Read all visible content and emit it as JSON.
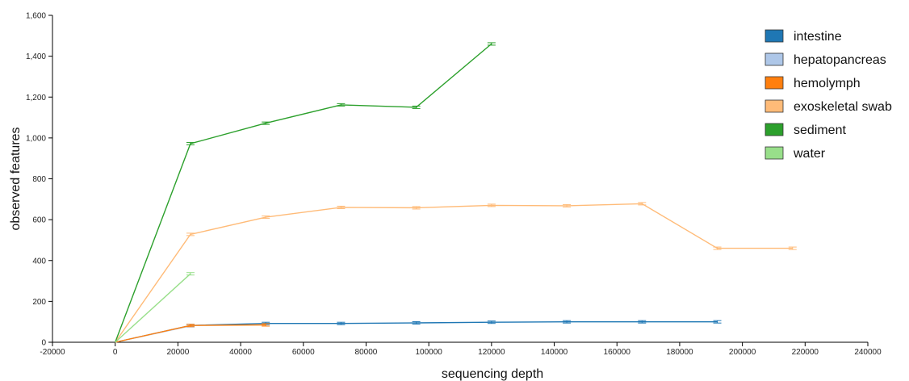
{
  "chart_data": {
    "type": "line",
    "xlabel": "sequencing depth",
    "ylabel": "observed features",
    "xlim": [
      -20000,
      240000
    ],
    "ylim": [
      0,
      1600
    ],
    "xticks": [
      -20000,
      0,
      20000,
      40000,
      60000,
      80000,
      100000,
      120000,
      140000,
      160000,
      180000,
      200000,
      220000,
      240000
    ],
    "xtick_labels": [
      "-20000",
      "0",
      "20000",
      "40000",
      "60000",
      "80000",
      "100000",
      "120000",
      "140000",
      "160000",
      "180000",
      "200000",
      "220000",
      "240000"
    ],
    "yticks": [
      0,
      200,
      400,
      600,
      800,
      1000,
      1200,
      1400,
      1600
    ],
    "ytick_labels": [
      "0",
      "200",
      "400",
      "600",
      "800",
      "1,000",
      "1,200",
      "1,400",
      "1,600"
    ],
    "grid": false,
    "legend_position": "top-right",
    "series": [
      {
        "name": "intestine",
        "color": "#1f77b4",
        "x": [
          0,
          24000,
          48000,
          72000,
          96000,
          120000,
          144000,
          168000,
          192000
        ],
        "y": [
          0,
          82,
          92,
          92,
          95,
          98,
          100,
          100,
          100
        ]
      },
      {
        "name": "hepatopancreas",
        "color": "#aec7e8",
        "x": [
          0,
          24000
        ],
        "y": [
          0,
          80
        ]
      },
      {
        "name": "hemolymph",
        "color": "#ff7f0e",
        "x": [
          0,
          24000,
          48000
        ],
        "y": [
          0,
          82,
          85
        ]
      },
      {
        "name": "exoskeletal swab",
        "color": "#ffbb78",
        "x": [
          0,
          24000,
          48000,
          72000,
          96000,
          120000,
          144000,
          168000,
          192000,
          216000
        ],
        "y": [
          0,
          528,
          612,
          660,
          658,
          670,
          668,
          678,
          460,
          460
        ]
      },
      {
        "name": "sediment",
        "color": "#2ca02c",
        "x": [
          0,
          24000,
          48000,
          72000,
          96000,
          120000
        ],
        "y": [
          0,
          972,
          1072,
          1162,
          1150,
          1460
        ]
      },
      {
        "name": "water",
        "color": "#98df8a",
        "x": [
          0,
          24000
        ],
        "y": [
          0,
          335
        ]
      }
    ]
  }
}
